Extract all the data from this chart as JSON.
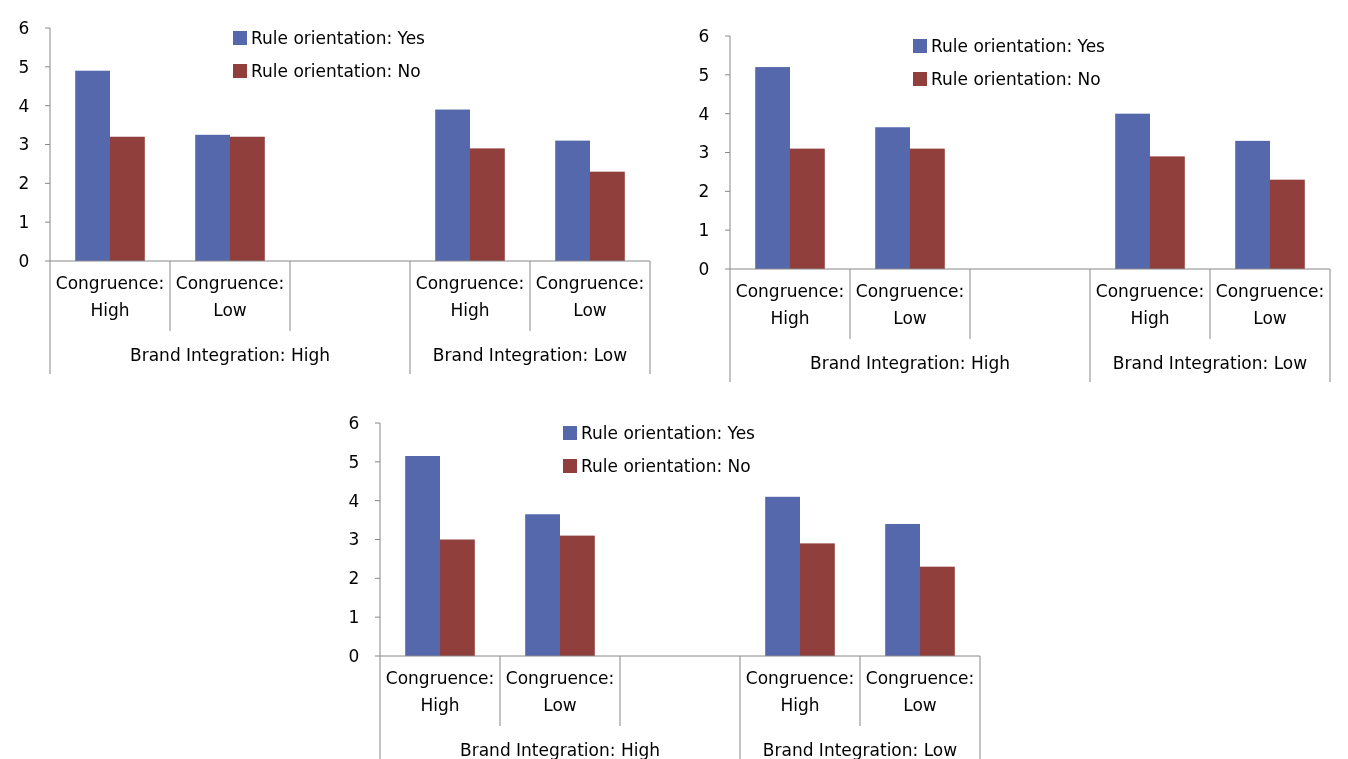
{
  "chart_data": [
    {
      "type": "bar",
      "categories": [
        "Congruence: High",
        "Congruence: Low",
        null,
        "Congruence: High",
        "Congruence: Low"
      ],
      "annotations": [
        "Brand Integration: High",
        "Brand Integration: Low"
      ],
      "ylim": [
        0,
        6
      ],
      "yticks": [
        0,
        1,
        2,
        3,
        4,
        5,
        6
      ],
      "legend": "top",
      "series": [
        {
          "name": "Rule orientation: Yes",
          "color": "#5468ab",
          "values": [
            4.9,
            3.25,
            null,
            3.9,
            3.1
          ]
        },
        {
          "name": "Rule orientation: No",
          "color": "#913f3d",
          "values": [
            3.2,
            3.2,
            null,
            2.9,
            2.3
          ]
        }
      ]
    },
    {
      "type": "bar",
      "categories": [
        "Congruence: High",
        "Congruence: Low",
        null,
        "Congruence: High",
        "Congruence: Low"
      ],
      "annotations": [
        "Brand Integration: High",
        "Brand Integration: Low"
      ],
      "ylim": [
        0,
        6
      ],
      "yticks": [
        0,
        1,
        2,
        3,
        4,
        5,
        6
      ],
      "legend": "top",
      "series": [
        {
          "name": "Rule orientation: Yes",
          "color": "#5468ab",
          "values": [
            5.2,
            3.65,
            null,
            4.0,
            3.3
          ]
        },
        {
          "name": "Rule orientation: No",
          "color": "#913f3d",
          "values": [
            3.1,
            3.1,
            null,
            2.9,
            2.3
          ]
        }
      ]
    },
    {
      "type": "bar",
      "categories": [
        "Congruence: High",
        "Congruence: Low",
        null,
        "Congruence: High",
        "Congruence: Low"
      ],
      "annotations": [
        "Brand Integration: High",
        "Brand Integration: Low"
      ],
      "ylim": [
        0,
        6
      ],
      "yticks": [
        0,
        1,
        2,
        3,
        4,
        5,
        6
      ],
      "legend": "top",
      "series": [
        {
          "name": "Rule orientation: Yes",
          "color": "#5468ab",
          "values": [
            5.15,
            3.65,
            null,
            4.1,
            3.4
          ]
        },
        {
          "name": "Rule orientation: No",
          "color": "#913f3d",
          "values": [
            3.0,
            3.1,
            null,
            2.9,
            2.3
          ]
        }
      ]
    }
  ]
}
